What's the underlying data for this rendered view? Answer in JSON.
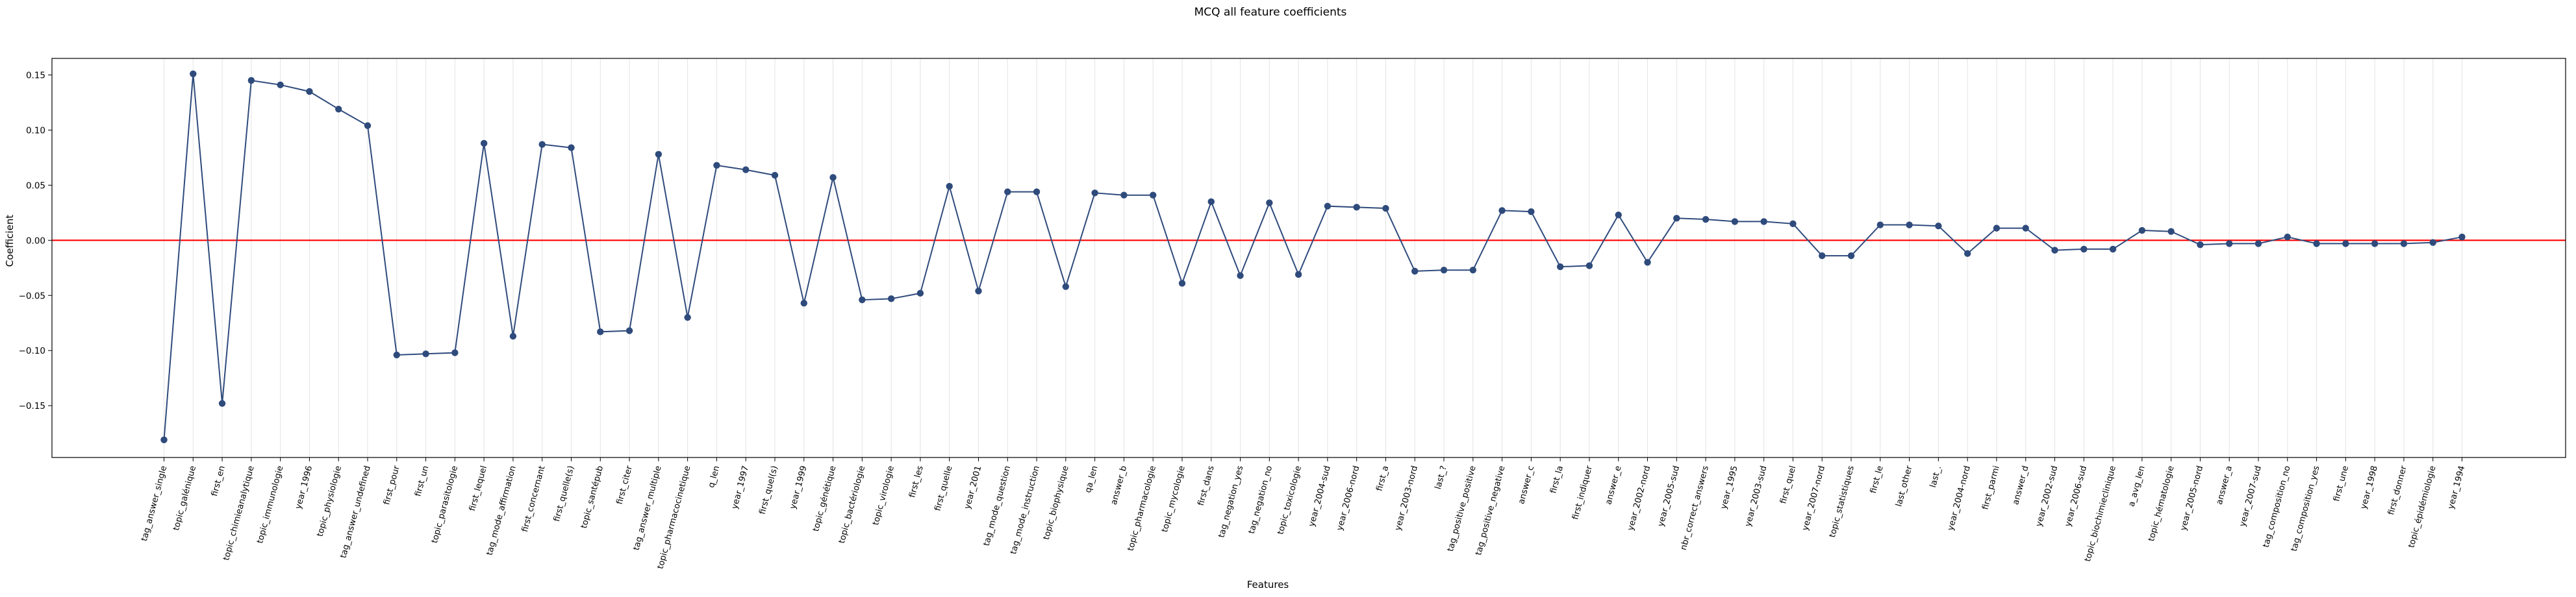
{
  "chart_data": {
    "type": "line",
    "title": "MCQ all feature coefficients",
    "xlabel": "Features",
    "ylabel": "Coefficient",
    "ylim": [
      -0.197,
      0.165
    ],
    "yticks": [
      -0.15,
      -0.1,
      -0.05,
      0.0,
      0.05,
      0.1,
      0.15
    ],
    "ytick_labels": [
      "−0.15",
      "−0.10",
      "−0.05",
      "0.00",
      "0.05",
      "0.10",
      "0.15"
    ],
    "reference_line": {
      "y": 0.0,
      "color": "#ff0000"
    },
    "grid": "vertical",
    "series_color": "#2f4b7c",
    "categories": [
      "tag_answer_single",
      "topic_galénique",
      "first_en",
      "topic_chimieanalytique",
      "topic_immunologie",
      "year_1996",
      "topic_physiologie",
      "tag_answer_undefined",
      "first_pour",
      "first_un",
      "topic_parasitologie",
      "first_lequel",
      "tag_mode_affirmation",
      "first_concernant",
      "first_quelle(s)",
      "topic_santépub",
      "first_citer",
      "tag_answer_multiple",
      "topic_pharmacocinetique",
      "q_len",
      "year_1997",
      "first_quel(s)",
      "year_1999",
      "topic_génétique",
      "topic_bactériologie",
      "topic_virologie",
      "first_les",
      "first_quelle",
      "year_2001",
      "tag_mode_question",
      "tag_mode_instruction",
      "topic_biophysique",
      "qa_len",
      "answer_b",
      "topic_pharmacologie",
      "topic_mycologie",
      "first_dans",
      "tag_negation_yes",
      "tag_negation_no",
      "topic_toxicologie",
      "year_2004-sud",
      "year_2006-nord",
      "first_a",
      "year_2003-nord",
      "last_?",
      "tag_positive_positive",
      "tag_positive_negative",
      "answer_c",
      "first_la",
      "first_indiquer",
      "answer_e",
      "year_2002-nord",
      "year_2005-sud",
      "nbr_correct_answers",
      "year_1995",
      "year_2003-sud",
      "first_quel",
      "year_2007-nord",
      "topic_statistiques",
      "first_le",
      "last_other",
      "last_.",
      "year_2004-nord",
      "first_parmi",
      "answer_d",
      "year_2002-sud",
      "year_2006-sud",
      "topic_biochimieclinique",
      "a_avg_len",
      "topic_hématologie",
      "year_2005-nord",
      "answer_a",
      "year_2007-sud",
      "tag_composition_no",
      "tag_composition_yes",
      "first_une",
      "year_1998",
      "first_donner",
      "topic_épidémiologie",
      "year_1994"
    ],
    "values": [
      -0.181,
      0.151,
      -0.148,
      0.145,
      0.141,
      0.135,
      0.119,
      0.104,
      -0.104,
      -0.103,
      -0.102,
      0.088,
      -0.087,
      0.087,
      0.084,
      -0.083,
      -0.082,
      0.078,
      -0.07,
      0.068,
      0.064,
      0.059,
      -0.057,
      0.057,
      -0.054,
      -0.053,
      -0.048,
      0.049,
      -0.046,
      0.044,
      0.044,
      -0.042,
      0.043,
      0.041,
      0.041,
      -0.039,
      0.035,
      -0.032,
      0.034,
      -0.031,
      0.031,
      0.03,
      0.029,
      -0.028,
      -0.027,
      -0.027,
      0.027,
      0.026,
      -0.024,
      -0.023,
      0.023,
      -0.02,
      0.02,
      0.019,
      0.017,
      0.017,
      0.015,
      -0.014,
      -0.014,
      0.014,
      0.014,
      0.013,
      -0.012,
      0.011,
      0.011,
      -0.009,
      -0.008,
      -0.008,
      0.009,
      0.008,
      -0.004,
      -0.003,
      -0.003,
      0.003,
      -0.003,
      -0.003,
      -0.003,
      -0.003,
      -0.002,
      0.003
    ]
  }
}
